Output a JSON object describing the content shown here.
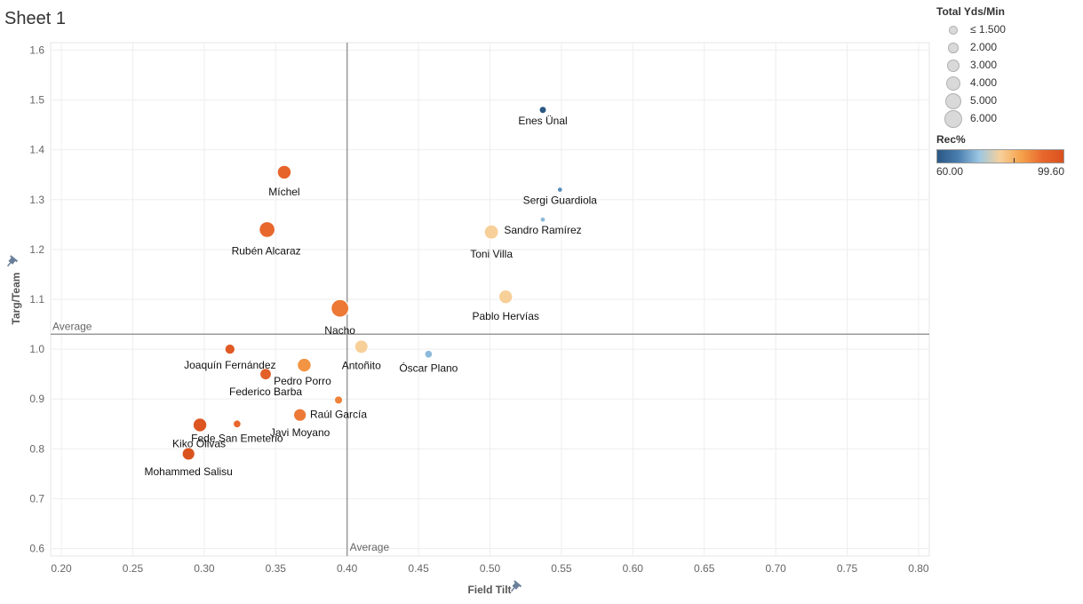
{
  "sheet_title": "Sheet 1",
  "legend": {
    "size_title": "Total Yds/Min",
    "size_items": [
      {
        "label": "≤ 1.500",
        "value": 1.5
      },
      {
        "label": "2.000",
        "value": 2.0
      },
      {
        "label": "3.000",
        "value": 3.0
      },
      {
        "label": "4.000",
        "value": 4.0
      },
      {
        "label": "5.000",
        "value": 5.0
      },
      {
        "label": "6.000",
        "value": 6.0
      }
    ],
    "color_title": "Rec%",
    "color_min_label": "60.00",
    "color_max_label": "99.60",
    "color_min": 60.0,
    "color_max": 99.6,
    "color_stops": [
      "#2a5783",
      "#4a7fb0",
      "#9cc7e3",
      "#f7d09a",
      "#f5a24a",
      "#e8672c",
      "#d9511e"
    ]
  },
  "chart_data": {
    "type": "scatter",
    "xlabel": "Field Tilt",
    "ylabel": "Targ/Team",
    "xlim": [
      0.2,
      0.8
    ],
    "ylim": [
      0.6,
      1.6
    ],
    "x_ticks": [
      "0.20",
      "0.25",
      "0.30",
      "0.35",
      "0.40",
      "0.45",
      "0.50",
      "0.55",
      "0.60",
      "0.65",
      "0.70",
      "0.75",
      "0.80"
    ],
    "y_ticks": [
      "0.6",
      "0.7",
      "0.8",
      "0.9",
      "1.0",
      "1.1",
      "1.2",
      "1.3",
      "1.4",
      "1.5",
      "1.6"
    ],
    "grid": true,
    "average_x": 0.4,
    "average_y": 1.03,
    "average_label": "Average",
    "points": [
      {
        "name": "Enes Ünal",
        "x": 0.537,
        "y": 1.48,
        "size": 1.5,
        "rec": 60
      },
      {
        "name": "Sergi Guardiola",
        "x": 0.549,
        "y": 1.32,
        "size": 1.0,
        "rec": 68
      },
      {
        "name": "Sandro Ramírez",
        "x": 0.537,
        "y": 1.26,
        "size": 1.0,
        "rec": 72
      },
      {
        "name": "Toni Villa",
        "x": 0.501,
        "y": 1.235,
        "size": 4.2,
        "rec": 80
      },
      {
        "name": "Pablo Hervías",
        "x": 0.511,
        "y": 1.105,
        "size": 4.0,
        "rec": 80
      },
      {
        "name": "Míchel",
        "x": 0.356,
        "y": 1.355,
        "size": 4.0,
        "rec": 94
      },
      {
        "name": "Rubén Alcaraz",
        "x": 0.344,
        "y": 1.24,
        "size": 5.0,
        "rec": 93
      },
      {
        "name": "Nacho",
        "x": 0.395,
        "y": 1.082,
        "size": 6.0,
        "rec": 91
      },
      {
        "name": "Antoñito",
        "x": 0.41,
        "y": 1.005,
        "size": 3.8,
        "rec": 80
      },
      {
        "name": "Óscar Plano",
        "x": 0.457,
        "y": 0.99,
        "size": 1.7,
        "rec": 72
      },
      {
        "name": "Joaquín Fernández",
        "x": 0.318,
        "y": 1.0,
        "size": 2.5,
        "rec": 97
      },
      {
        "name": "Pedro Porro",
        "x": 0.37,
        "y": 0.968,
        "size": 4.0,
        "rec": 88
      },
      {
        "name": "Federico Barba",
        "x": 0.343,
        "y": 0.95,
        "size": 3.0,
        "rec": 95
      },
      {
        "name": "Raúl García",
        "x": 0.394,
        "y": 0.898,
        "size": 1.8,
        "rec": 90
      },
      {
        "name": "Javi Moyano",
        "x": 0.367,
        "y": 0.868,
        "size": 3.5,
        "rec": 91
      },
      {
        "name": "Fede San Emeterio",
        "x": 0.323,
        "y": 0.85,
        "size": 1.7,
        "rec": 93
      },
      {
        "name": "Kiko Olivas",
        "x": 0.297,
        "y": 0.848,
        "size": 4.0,
        "rec": 98
      },
      {
        "name": "Mohammed Salisu",
        "x": 0.289,
        "y": 0.79,
        "size": 3.5,
        "rec": 99
      }
    ]
  }
}
